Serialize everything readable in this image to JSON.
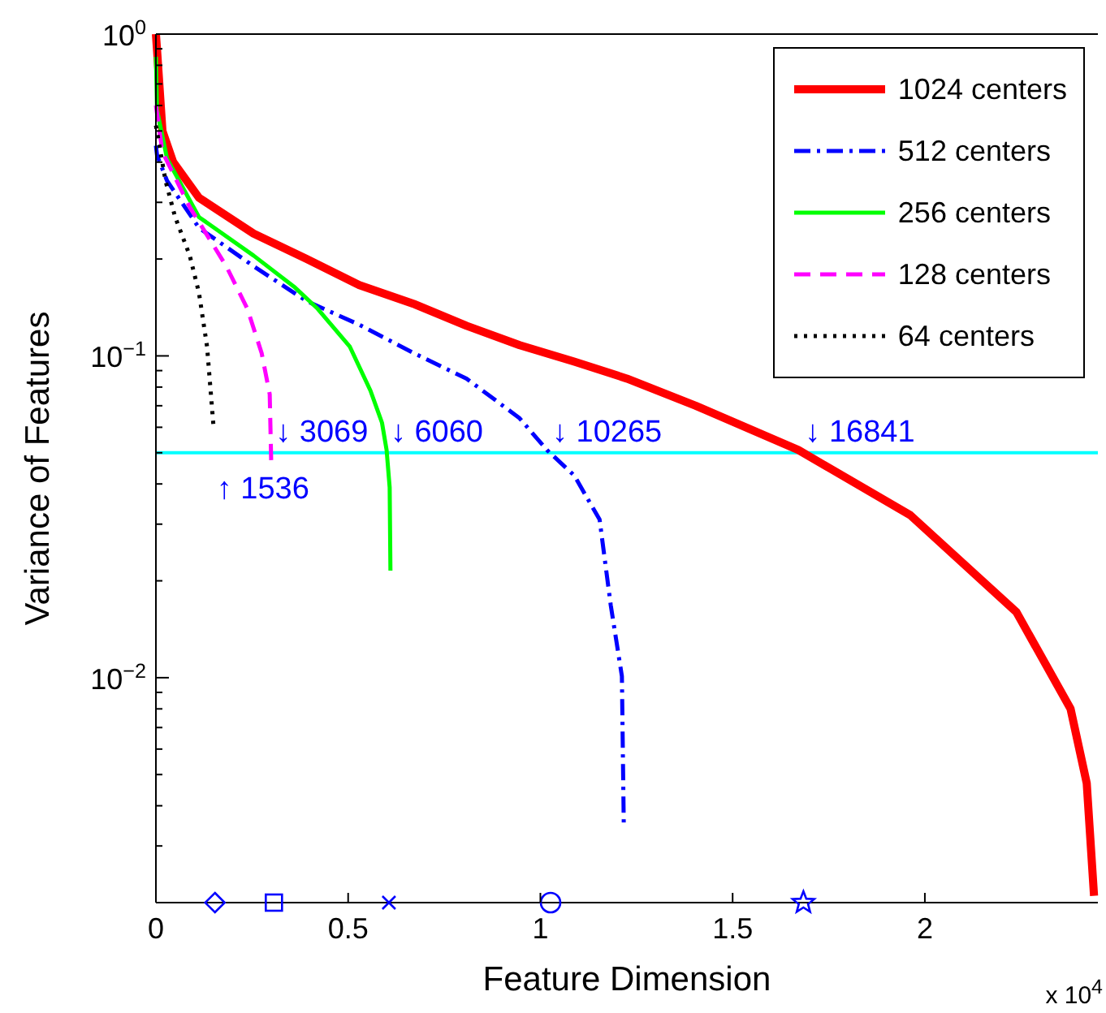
{
  "chart_data": {
    "type": "line",
    "xlabel": "Feature Dimension",
    "ylabel": "Variance of Features",
    "xlim": [
      0,
      2.45
    ],
    "xticks": [
      0,
      0.5,
      1,
      1.5,
      2
    ],
    "ylim": [
      0.002,
      1
    ],
    "yticks": [
      {
        "value": 0.002,
        "label": null
      },
      {
        "value": 0.003,
        "label": null
      },
      {
        "value": 0.004,
        "label": null
      },
      {
        "value": 0.005,
        "label": null
      },
      {
        "value": 0.006,
        "label": null
      },
      {
        "value": 0.007,
        "label": null
      },
      {
        "value": 0.008,
        "label": null
      },
      {
        "value": 0.009,
        "label": null
      },
      {
        "value": 0.01,
        "label": "10$^{−2}$"
      },
      {
        "value": 0.02,
        "label": null
      },
      {
        "value": 0.03,
        "label": null
      },
      {
        "value": 0.04,
        "label": null
      },
      {
        "value": 0.05,
        "label": null
      },
      {
        "value": 0.06,
        "label": null
      },
      {
        "value": 0.07,
        "label": null
      },
      {
        "value": 0.08,
        "label": null
      },
      {
        "value": 0.09,
        "label": null
      },
      {
        "value": 0.1,
        "label": "10$^{−1}$"
      },
      {
        "value": 0.2,
        "label": null
      },
      {
        "value": 0.3,
        "label": null
      },
      {
        "value": 0.4,
        "label": null
      },
      {
        "value": 0.5,
        "label": null
      },
      {
        "value": 0.6,
        "label": null
      },
      {
        "value": 0.7,
        "label": null
      },
      {
        "value": 0.8,
        "label": null
      },
      {
        "value": 0.9,
        "label": null
      },
      {
        "value": 1,
        "label": "10$^{0}$"
      }
    ],
    "log": true,
    "grid": false,
    "legend": "top right",
    "marker": "none",
    "series": [
      {
        "name": "1024 centers",
        "color": "#ff0000",
        "line_style": "solid",
        "x": [
          0,
          0.003,
          0.017,
          0.045,
          0.112,
          0.254,
          0.392,
          0.529,
          0.671,
          0.808,
          0.946,
          1.088,
          1.225,
          1.404,
          1.671,
          1.962,
          2.238,
          2.379,
          2.421,
          2.44
        ],
        "values": [
          1,
          0.89,
          0.5,
          0.4,
          0.31,
          0.24,
          0.2,
          0.166,
          0.145,
          0.124,
          0.108,
          0.096,
          0.085,
          0.07,
          0.051,
          0.032,
          0.016,
          0.008,
          0.0047,
          0.0021
        ]
      },
      {
        "name": "512 centers",
        "color": "#0000ff",
        "line_style": "dashdot",
        "x": [
          0,
          0.003,
          0.029,
          0.112,
          0.254,
          0.392,
          0.529,
          0.671,
          0.808,
          0.946,
          1.017,
          1.088,
          1.154,
          1.183,
          1.212,
          1.217
        ],
        "values": [
          0.45,
          0.42,
          0.35,
          0.25,
          0.19,
          0.148,
          0.125,
          0.102,
          0.085,
          0.064,
          0.051,
          0.0425,
          0.031,
          0.0168,
          0.0101,
          0.0034
        ]
      },
      {
        "name": "256 centers",
        "color": "#00ff00",
        "line_style": "solid",
        "x": [
          0,
          0.003,
          0.029,
          0.112,
          0.254,
          0.362,
          0.421,
          0.504,
          0.558,
          0.588,
          0.6,
          0.608,
          0.61
        ],
        "values": [
          0.85,
          0.58,
          0.41,
          0.27,
          0.205,
          0.163,
          0.14,
          0.107,
          0.078,
          0.062,
          0.051,
          0.039,
          0.0215
        ]
      },
      {
        "name": "128 centers",
        "color": "#ff00ff",
        "line_style": "dashed",
        "x": [
          0,
          0.017,
          0.088,
          0.183,
          0.238,
          0.275,
          0.296,
          0.3
        ],
        "values": [
          0.6,
          0.43,
          0.29,
          0.19,
          0.14,
          0.102,
          0.076,
          0.046
        ]
      },
      {
        "name": "64 centers",
        "color": "#000000",
        "line_style": "dotted",
        "x": [
          0,
          0.025,
          0.05,
          0.088,
          0.112,
          0.133,
          0.15
        ],
        "values": [
          0.52,
          0.35,
          0.27,
          0.205,
          0.157,
          0.107,
          0.06
        ]
      },
      {
        "type": "scatter",
        "marker": "diamond",
        "color": "#0000ff",
        "x": [
          0.1536
        ],
        "values": [
          0.002
        ]
      },
      {
        "type": "scatter",
        "marker": "square",
        "color": "#0000ff",
        "x": [
          0.3069
        ],
        "values": [
          0.002
        ]
      },
      {
        "type": "scatter",
        "marker": "cross",
        "color": "#0000ff",
        "x": [
          0.606
        ],
        "values": [
          0.002
        ]
      },
      {
        "type": "scatter",
        "marker": "circle",
        "color": "#0000ff",
        "x": [
          1.0265
        ],
        "values": [
          0.002
        ]
      },
      {
        "type": "scatter",
        "marker": "star",
        "color": "#0000ff",
        "x": [
          1.6841
        ],
        "values": [
          0.002
        ]
      }
    ],
    "ref_lines": [
      {
        "axis": "y",
        "value": 0.05,
        "color": "#00ffff",
        "line_style": "solid"
      }
    ],
    "annotations": [
      {
        "text": "↑ 1536",
        "x": 0.1536,
        "y": 0.06
      },
      {
        "text": "↓ 3069",
        "x": 0.3069,
        "y": 0.05
      },
      {
        "text": "↓ 6060",
        "x": 0.606,
        "y": 0.05
      },
      {
        "text": "↓ 10265",
        "x": 1.0265,
        "y": 0.05
      },
      {
        "text": "↓ 16841",
        "x": 1.6841,
        "y": 0.05
      },
      "x 10$^{4}$"
    ]
  }
}
